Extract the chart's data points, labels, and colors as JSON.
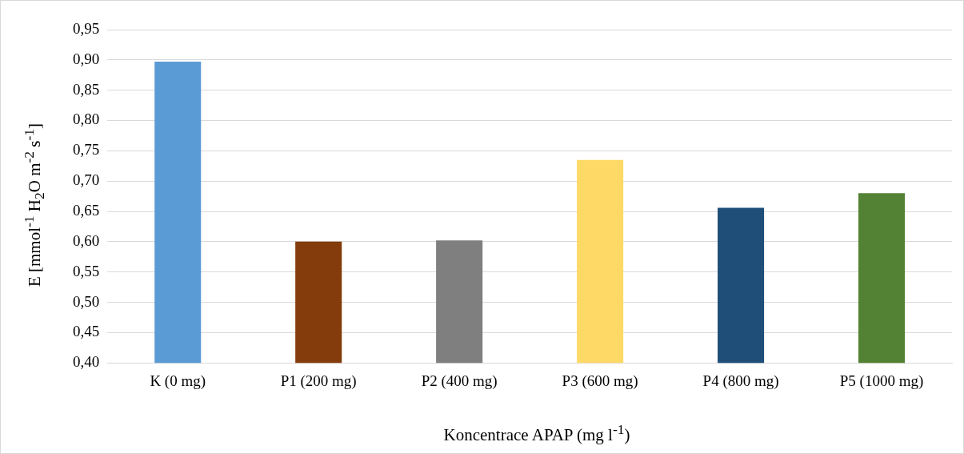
{
  "chart_data": {
    "type": "bar",
    "xlabel": "Koncentrace APAP (mg l$^{-1}$)",
    "ylabel": "E [mmol$^{-1}$ H$_{2}$O m$^{-2}$ s$^{-1}$]",
    "categories": [
      "K (0 mg)",
      "P1 (200 mg)",
      "P2 (400 mg)",
      "P3 (600 mg)",
      "P4 (800 mg)",
      "P5 (1000 mg)"
    ],
    "values": [
      0.897,
      0.6,
      0.602,
      0.735,
      0.656,
      0.68
    ],
    "colors": [
      "#5b9bd5",
      "#843c0c",
      "#7f7f7f",
      "#ffd966",
      "#1f4e79",
      "#548235"
    ],
    "ylim": [
      0.4,
      0.95
    ],
    "yticks": [
      {
        "value": 0.4,
        "label": "0,40"
      },
      {
        "value": 0.45,
        "label": "0,45"
      },
      {
        "value": 0.5,
        "label": "0,50"
      },
      {
        "value": 0.55,
        "label": "0,55"
      },
      {
        "value": 0.6,
        "label": "0,60"
      },
      {
        "value": 0.65,
        "label": "0,65"
      },
      {
        "value": 0.7,
        "label": "0,70"
      },
      {
        "value": 0.75,
        "label": "0,75"
      },
      {
        "value": 0.8,
        "label": "0,80"
      },
      {
        "value": 0.85,
        "label": "0,85"
      },
      {
        "value": 0.9,
        "label": "0,90"
      },
      {
        "value": 0.95,
        "label": "0,95"
      }
    ],
    "grid": "y",
    "legend": false
  }
}
